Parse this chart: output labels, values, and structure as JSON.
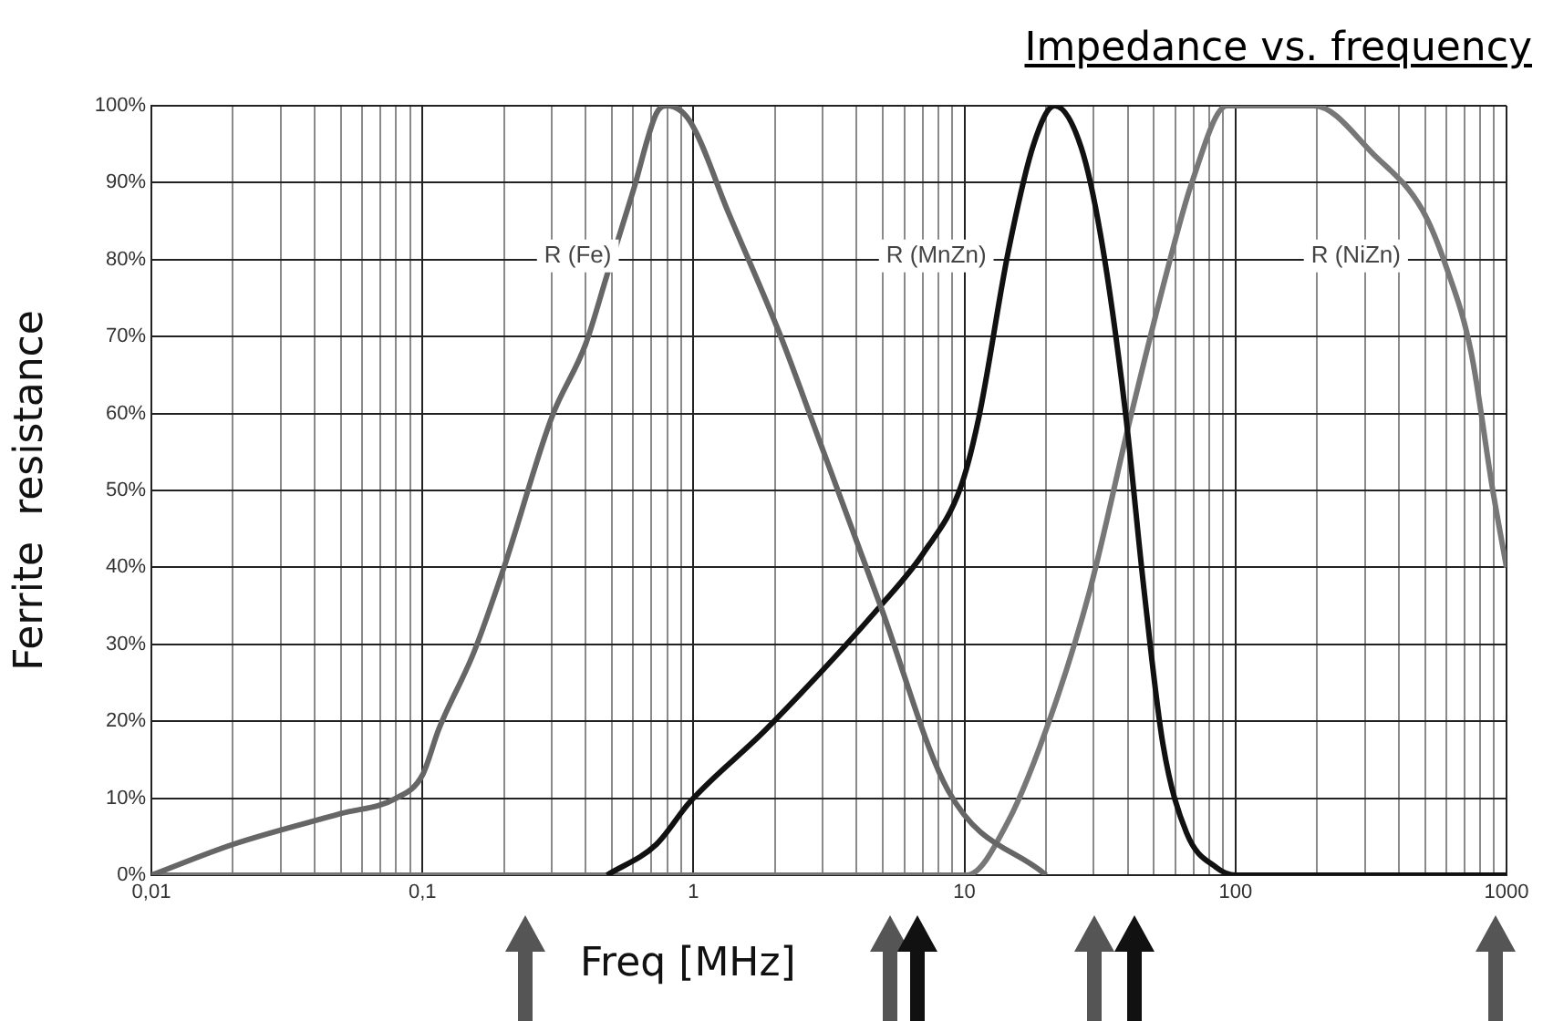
{
  "chart_data": {
    "type": "line",
    "title": "Impedance vs. frequency",
    "xlabel": "Freq [MHz]",
    "ylabel": "Ferrite  resistance",
    "log": "x",
    "grid": true,
    "xlim": [
      0.01,
      1000
    ],
    "ylim": [
      0,
      100
    ],
    "xticks": [
      {
        "value": 0.01,
        "label": "0,01"
      },
      {
        "value": 0.02,
        "label": null
      },
      {
        "value": 0.03,
        "label": null
      },
      {
        "value": 0.04,
        "label": null
      },
      {
        "value": 0.05,
        "label": null
      },
      {
        "value": 0.06,
        "label": null
      },
      {
        "value": 0.07,
        "label": null
      },
      {
        "value": 0.08,
        "label": null
      },
      {
        "value": 0.09,
        "label": null
      },
      {
        "value": 0.1,
        "label": "0,1"
      },
      {
        "value": 0.2,
        "label": null
      },
      {
        "value": 0.3,
        "label": null
      },
      {
        "value": 0.4,
        "label": null
      },
      {
        "value": 0.5,
        "label": null
      },
      {
        "value": 0.6,
        "label": null
      },
      {
        "value": 0.7,
        "label": null
      },
      {
        "value": 0.8,
        "label": null
      },
      {
        "value": 0.9,
        "label": null
      },
      1,
      {
        "value": 2,
        "label": null
      },
      {
        "value": 3,
        "label": null
      },
      {
        "value": 4,
        "label": null
      },
      {
        "value": 5,
        "label": null
      },
      {
        "value": 6,
        "label": null
      },
      {
        "value": 7,
        "label": null
      },
      {
        "value": 8,
        "label": null
      },
      {
        "value": 9,
        "label": null
      },
      10,
      {
        "value": 20,
        "label": null
      },
      {
        "value": 30,
        "label": null
      },
      {
        "value": 40,
        "label": null
      },
      {
        "value": 50,
        "label": null
      },
      {
        "value": 60,
        "label": null
      },
      {
        "value": 70,
        "label": null
      },
      {
        "value": 80,
        "label": null
      },
      {
        "value": 90,
        "label": null
      },
      100,
      {
        "value": 200,
        "label": null
      },
      {
        "value": 300,
        "label": null
      },
      {
        "value": 400,
        "label": null
      },
      {
        "value": 500,
        "label": null
      },
      {
        "value": 600,
        "label": null
      },
      {
        "value": 700,
        "label": null
      },
      {
        "value": 800,
        "label": null
      },
      {
        "value": 900,
        "label": null
      },
      1000
    ],
    "yticks": [
      {
        "value": 0,
        "label": "0%"
      },
      {
        "value": 10,
        "label": "10%"
      },
      {
        "value": 20,
        "label": "20%"
      },
      {
        "value": 30,
        "label": "30%"
      },
      {
        "value": 40,
        "label": "40%"
      },
      {
        "value": 50,
        "label": "50%"
      },
      {
        "value": 60,
        "label": "60%"
      },
      {
        "value": 70,
        "label": "70%"
      },
      {
        "value": 80,
        "label": "80%"
      },
      {
        "value": 90,
        "label": "90%"
      },
      {
        "value": 100,
        "label": "100%"
      }
    ],
    "series": [
      {
        "name": "R (Fe)",
        "color": "#666666",
        "x": [
          0.01,
          0.02,
          0.05,
          0.08,
          0.1,
          0.115,
          0.155,
          0.2,
          0.3,
          0.4,
          0.48,
          0.6,
          0.73,
          0.8,
          0.97,
          1.35,
          2.1,
          2.95,
          4.9,
          8.7,
          20
        ],
        "values": [
          0,
          4,
          8,
          10,
          13,
          19,
          29,
          40,
          59.5,
          69,
          78,
          89,
          99,
          100,
          98,
          86,
          70,
          56,
          35,
          11,
          0
        ]
      },
      {
        "name": "R (MnZn)",
        "color": "#111111",
        "x": [
          0.48,
          0.73,
          0.97,
          1.86,
          4.9,
          7.1,
          9.7,
          11.3,
          14.5,
          18,
          21.5,
          27,
          32,
          39,
          46,
          54,
          66,
          85,
          100,
          1000
        ],
        "values": [
          0,
          4,
          9.5,
          19,
          35,
          42,
          50.5,
          59.5,
          81,
          95,
          100,
          94.5,
          82.6,
          61,
          37,
          17,
          5.5,
          1,
          0,
          0
        ]
      },
      {
        "name": "R (NiZn)",
        "color": "#777777",
        "x": [
          0.01,
          10.2,
          14.5,
          21,
          29,
          41,
          56,
          69,
          93,
          195,
          325,
          490,
          600,
          740,
          890,
          1000
        ],
        "values": [
          0,
          0,
          7,
          21,
          37,
          59.5,
          78.6,
          90,
          100,
          100,
          93.6,
          86.4,
          79,
          68,
          50,
          40
        ]
      }
    ]
  }
}
